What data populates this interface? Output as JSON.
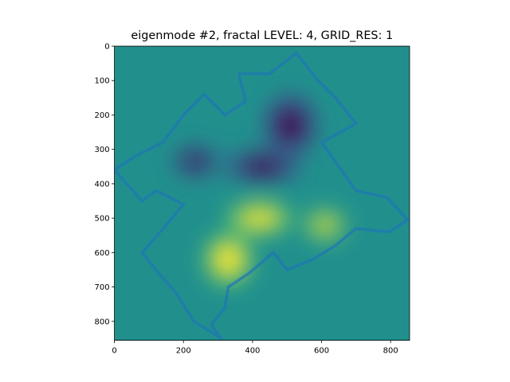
{
  "chart_data": {
    "type": "heatmap",
    "title": "eigenmode #2, fractal LEVEL: 4, GRID_RES: 1",
    "xlabel": "",
    "ylabel": "",
    "xlim": [
      0,
      855
    ],
    "ylim": [
      855,
      0
    ],
    "x_ticks": [
      0,
      200,
      400,
      600,
      800
    ],
    "y_ticks": [
      0,
      100,
      200,
      300,
      400,
      500,
      600,
      700,
      800
    ],
    "grid": false,
    "legend": "none",
    "colormap": "viridis",
    "background_value_color": "#21908d",
    "outline_color": "#1f77b4",
    "field_blobs": [
      {
        "x": 510,
        "y": 230,
        "rx": 60,
        "ry": 70,
        "sign": -1,
        "strength": 1.0
      },
      {
        "x": 430,
        "y": 350,
        "rx": 85,
        "ry": 40,
        "sign": -1,
        "strength": 0.85
      },
      {
        "x": 235,
        "y": 335,
        "rx": 55,
        "ry": 40,
        "sign": -1,
        "strength": 0.65
      },
      {
        "x": 420,
        "y": 500,
        "rx": 75,
        "ry": 40,
        "sign": 1,
        "strength": 0.9
      },
      {
        "x": 330,
        "y": 620,
        "rx": 55,
        "ry": 60,
        "sign": 1,
        "strength": 1.0
      },
      {
        "x": 610,
        "y": 520,
        "rx": 50,
        "ry": 40,
        "sign": 1,
        "strength": 0.65
      }
    ],
    "outline": [
      [
        527,
        20
      ],
      [
        585,
        95
      ],
      [
        640,
        150
      ],
      [
        700,
        225
      ],
      [
        600,
        280
      ],
      [
        700,
        420
      ],
      [
        790,
        440
      ],
      [
        850,
        505
      ],
      [
        795,
        540
      ],
      [
        700,
        530
      ],
      [
        640,
        580
      ],
      [
        575,
        620
      ],
      [
        500,
        650
      ],
      [
        460,
        600
      ],
      [
        390,
        660
      ],
      [
        330,
        700
      ],
      [
        320,
        760
      ],
      [
        280,
        810
      ],
      [
        310,
        850
      ],
      [
        230,
        800
      ],
      [
        180,
        720
      ],
      [
        120,
        650
      ],
      [
        80,
        600
      ],
      [
        150,
        520
      ],
      [
        200,
        460
      ],
      [
        120,
        420
      ],
      [
        80,
        450
      ],
      [
        0,
        360
      ],
      [
        60,
        320
      ],
      [
        140,
        280
      ],
      [
        200,
        200
      ],
      [
        260,
        140
      ],
      [
        320,
        200
      ],
      [
        380,
        160
      ],
      [
        360,
        80
      ],
      [
        450,
        80
      ]
    ]
  }
}
